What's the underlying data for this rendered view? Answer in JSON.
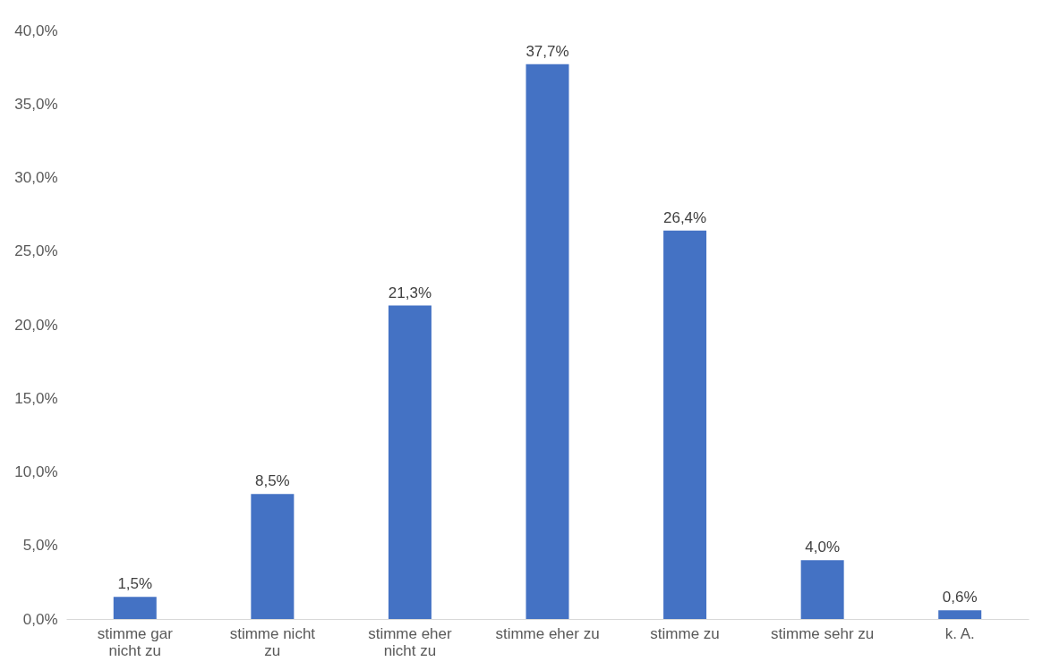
{
  "chart_data": {
    "type": "bar",
    "categories": [
      "stimme gar nicht zu",
      "stimme nicht zu",
      "stimme eher nicht zu",
      "stimme eher zu",
      "stimme zu",
      "stimme sehr zu",
      "k. A."
    ],
    "values": [
      1.5,
      8.5,
      21.3,
      37.7,
      26.4,
      4.0,
      0.6
    ],
    "value_labels": [
      "1,5%",
      "8,5%",
      "21,3%",
      "37,7%",
      "26,4%",
      "4,0%",
      "0,6%"
    ],
    "color": "#4472c4",
    "ylim": [
      0,
      40
    ],
    "yticks": [
      {
        "value": 0,
        "label": "0,0%"
      },
      {
        "value": 5,
        "label": "5,0%"
      },
      {
        "value": 10,
        "label": "10,0%"
      },
      {
        "value": 15,
        "label": "15,0%"
      },
      {
        "value": 20,
        "label": "20,0%"
      },
      {
        "value": 25,
        "label": "25,0%"
      },
      {
        "value": 30,
        "label": "30,0%"
      },
      {
        "value": 35,
        "label": "35,0%"
      },
      {
        "value": 40,
        "label": "40,0%"
      }
    ],
    "grid": false
  }
}
